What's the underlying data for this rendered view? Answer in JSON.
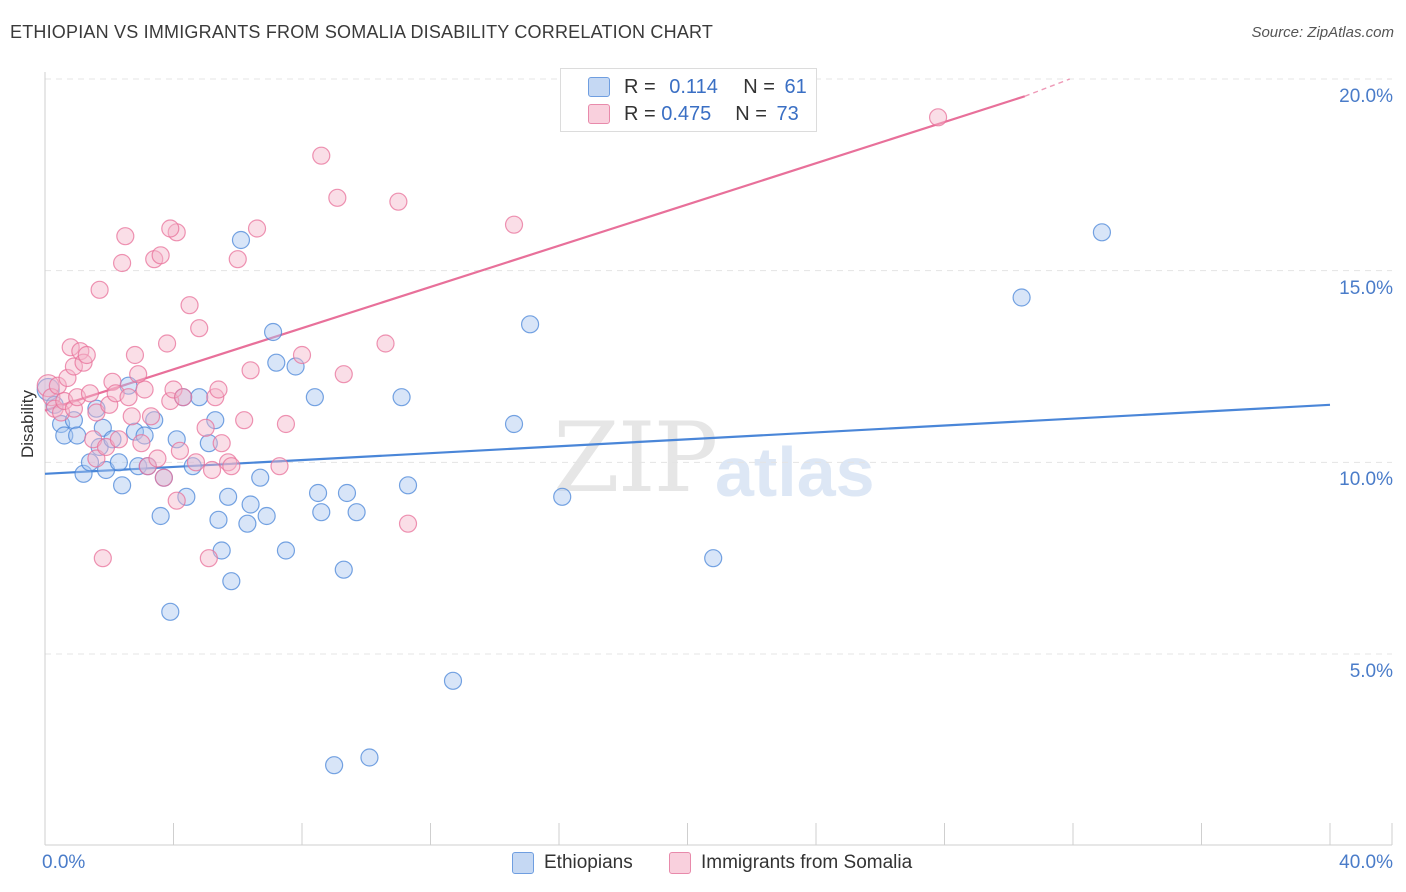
{
  "header": {
    "title": "ETHIOPIAN VS IMMIGRANTS FROM SOMALIA DISABILITY CORRELATION CHART",
    "source": "Source: ZipAtlas.com"
  },
  "watermark": {
    "zip": "ZIP",
    "atlas": "atlas"
  },
  "legend_top": {
    "rows": [
      {
        "r_label": "R = ",
        "r_value": "0.114",
        "n_label": "N = ",
        "n_value": "61",
        "color": "#a9c6ef"
      },
      {
        "r_label": "R = ",
        "r_value": "0.475",
        "n_label": "N = ",
        "n_value": "73",
        "color": "#f5b6ca"
      }
    ]
  },
  "legend_bottom": {
    "items": [
      {
        "label": "Ethiopians",
        "color": "#a9c6ef"
      },
      {
        "label": "Immigrants from Somalia",
        "color": "#f5b6ca"
      }
    ]
  },
  "chart_data": {
    "type": "scatter",
    "title": "ETHIOPIAN VS IMMIGRANTS FROM SOMALIA DISABILITY CORRELATION CHART",
    "xlabel": "",
    "ylabel": "Disability",
    "xlim": [
      0,
      40
    ],
    "ylim": [
      0,
      21
    ],
    "x_tick_labels": [
      "0.0%",
      "40.0%"
    ],
    "y_ticks": [
      5,
      10,
      15,
      20
    ],
    "y_tick_labels": [
      "5.0%",
      "10.0%",
      "15.0%",
      "20.0%"
    ],
    "grid": true,
    "legend_position": "top-center",
    "series": [
      {
        "name": "Ethiopians",
        "color": "#4a86d8",
        "fill": "#a9c6ef",
        "r": 0.114,
        "n": 61,
        "trend": {
          "x": [
            0,
            40
          ],
          "y": [
            9.7,
            11.5
          ]
        },
        "points": [
          [
            0.1,
            11.9
          ],
          [
            0.3,
            11.5
          ],
          [
            0.5,
            11.0
          ],
          [
            0.6,
            10.7
          ],
          [
            0.9,
            11.1
          ],
          [
            1.0,
            10.7
          ],
          [
            1.2,
            9.7
          ],
          [
            1.4,
            10.0
          ],
          [
            1.6,
            11.4
          ],
          [
            1.7,
            10.4
          ],
          [
            1.8,
            10.9
          ],
          [
            1.9,
            9.8
          ],
          [
            2.1,
            10.6
          ],
          [
            2.3,
            10.0
          ],
          [
            2.4,
            9.4
          ],
          [
            2.6,
            12.0
          ],
          [
            2.8,
            10.8
          ],
          [
            2.9,
            9.9
          ],
          [
            3.1,
            10.7
          ],
          [
            3.2,
            9.9
          ],
          [
            3.4,
            11.1
          ],
          [
            3.6,
            8.6
          ],
          [
            3.7,
            9.6
          ],
          [
            3.9,
            6.1
          ],
          [
            4.1,
            10.6
          ],
          [
            4.3,
            11.7
          ],
          [
            4.4,
            9.1
          ],
          [
            4.6,
            9.9
          ],
          [
            4.8,
            11.7
          ],
          [
            5.1,
            10.5
          ],
          [
            5.3,
            11.1
          ],
          [
            5.4,
            8.5
          ],
          [
            5.5,
            7.7
          ],
          [
            5.7,
            9.1
          ],
          [
            5.8,
            6.9
          ],
          [
            6.1,
            15.8
          ],
          [
            6.3,
            8.4
          ],
          [
            6.4,
            8.9
          ],
          [
            6.7,
            9.6
          ],
          [
            6.9,
            8.6
          ],
          [
            7.1,
            13.4
          ],
          [
            7.2,
            12.6
          ],
          [
            7.5,
            7.7
          ],
          [
            7.8,
            12.5
          ],
          [
            8.4,
            11.7
          ],
          [
            8.5,
            9.2
          ],
          [
            8.6,
            8.7
          ],
          [
            9.0,
            2.1
          ],
          [
            9.3,
            7.2
          ],
          [
            9.4,
            9.2
          ],
          [
            9.7,
            8.7
          ],
          [
            10.1,
            2.3
          ],
          [
            11.1,
            11.7
          ],
          [
            11.3,
            9.4
          ],
          [
            12.7,
            4.3
          ],
          [
            14.6,
            11.0
          ],
          [
            15.1,
            13.6
          ],
          [
            16.1,
            9.1
          ],
          [
            20.8,
            7.5
          ],
          [
            30.4,
            14.3
          ],
          [
            32.9,
            16.0
          ]
        ]
      },
      {
        "name": "Immigrants from Somalia",
        "color": "#e8709a",
        "fill": "#f5b6ca",
        "r": 0.475,
        "n": 73,
        "trend": {
          "x": [
            0,
            30.5
          ],
          "y": [
            11.35,
            19.55
          ]
        },
        "trend_dashed": {
          "x": [
            30.5,
            31.9
          ],
          "y": [
            19.55,
            20.0
          ]
        },
        "points": [
          [
            0.1,
            12.0
          ],
          [
            0.2,
            11.7
          ],
          [
            0.3,
            11.4
          ],
          [
            0.4,
            12.0
          ],
          [
            0.5,
            11.3
          ],
          [
            0.6,
            11.6
          ],
          [
            0.7,
            12.2
          ],
          [
            0.8,
            13.0
          ],
          [
            0.9,
            11.4
          ],
          [
            0.9,
            12.5
          ],
          [
            1.0,
            11.7
          ],
          [
            1.1,
            12.9
          ],
          [
            1.2,
            12.6
          ],
          [
            1.3,
            12.8
          ],
          [
            1.4,
            11.8
          ],
          [
            1.5,
            10.6
          ],
          [
            1.6,
            11.3
          ],
          [
            1.6,
            10.1
          ],
          [
            1.7,
            14.5
          ],
          [
            1.8,
            7.5
          ],
          [
            1.9,
            10.4
          ],
          [
            2.0,
            11.5
          ],
          [
            2.1,
            12.1
          ],
          [
            2.2,
            11.8
          ],
          [
            2.3,
            10.6
          ],
          [
            2.4,
            15.2
          ],
          [
            2.5,
            15.9
          ],
          [
            2.6,
            11.7
          ],
          [
            2.7,
            11.2
          ],
          [
            2.8,
            12.8
          ],
          [
            2.9,
            12.3
          ],
          [
            3.0,
            10.5
          ],
          [
            3.1,
            11.9
          ],
          [
            3.2,
            9.9
          ],
          [
            3.3,
            11.2
          ],
          [
            3.4,
            15.3
          ],
          [
            3.5,
            10.1
          ],
          [
            3.6,
            15.4
          ],
          [
            3.7,
            9.6
          ],
          [
            3.8,
            13.1
          ],
          [
            3.9,
            11.6
          ],
          [
            4.0,
            11.9
          ],
          [
            4.1,
            16.0
          ],
          [
            4.1,
            9.0
          ],
          [
            4.2,
            10.3
          ],
          [
            4.3,
            11.7
          ],
          [
            4.5,
            14.1
          ],
          [
            4.7,
            10.0
          ],
          [
            4.8,
            13.5
          ],
          [
            5.0,
            10.9
          ],
          [
            5.1,
            7.5
          ],
          [
            5.2,
            9.8
          ],
          [
            5.3,
            11.7
          ],
          [
            5.4,
            11.9
          ],
          [
            5.5,
            10.5
          ],
          [
            5.7,
            10.0
          ],
          [
            5.8,
            9.9
          ],
          [
            6.0,
            15.3
          ],
          [
            6.2,
            11.1
          ],
          [
            6.4,
            12.4
          ],
          [
            6.6,
            16.1
          ],
          [
            7.3,
            9.9
          ],
          [
            7.5,
            11.0
          ],
          [
            8.0,
            12.8
          ],
          [
            8.6,
            18.0
          ],
          [
            9.1,
            16.9
          ],
          [
            9.3,
            12.3
          ],
          [
            10.6,
            13.1
          ],
          [
            11.0,
            16.8
          ],
          [
            11.3,
            8.4
          ],
          [
            14.6,
            16.2
          ],
          [
            27.8,
            19.0
          ],
          [
            3.9,
            16.1
          ]
        ]
      }
    ]
  }
}
